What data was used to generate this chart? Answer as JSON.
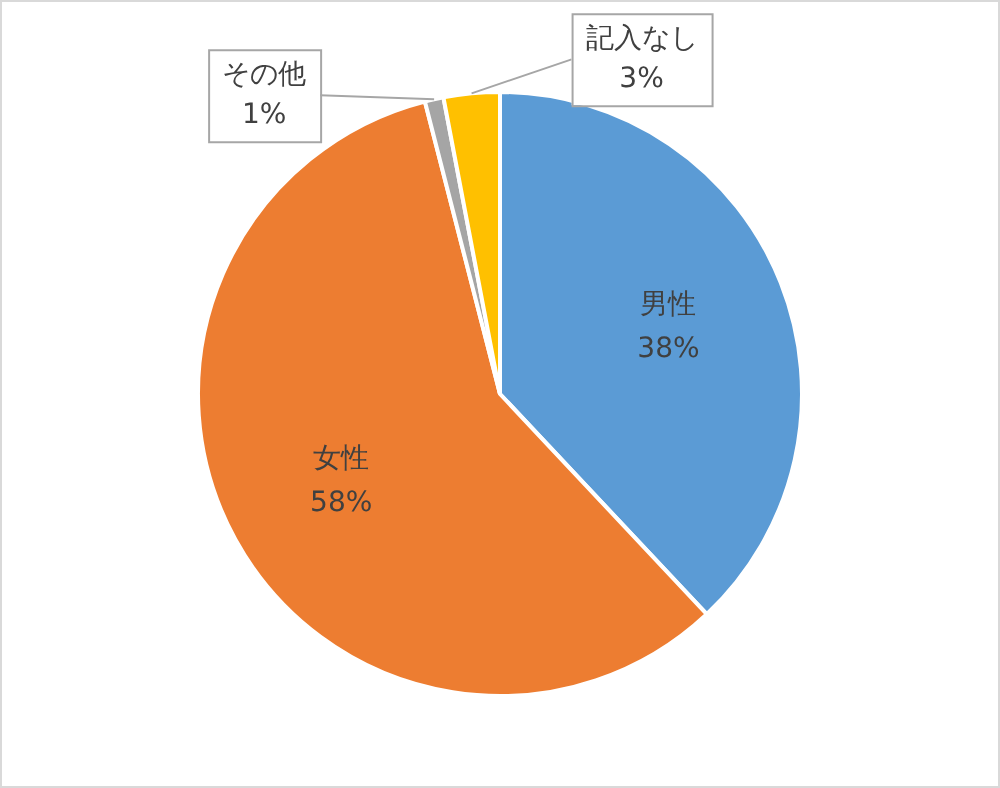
{
  "chart_data": {
    "type": "pie",
    "categories": [
      "男性",
      "女性",
      "その他",
      "記入なし"
    ],
    "values": [
      38,
      58,
      1,
      3
    ],
    "value_labels": [
      "38%",
      "58%",
      "1%",
      "3%"
    ],
    "colors": [
      "#5b9bd5",
      "#ed7d31",
      "#a5a5a5",
      "#ffc000"
    ],
    "legend": false
  }
}
